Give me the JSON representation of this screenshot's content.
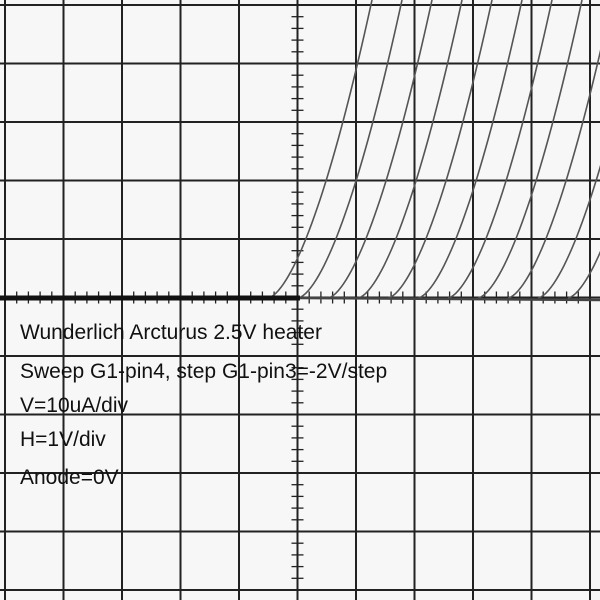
{
  "annotations": [
    "Wunderlich Arcturus 2.5V heater",
    "Sweep G1-pin4, step G1-pin3=-2V/step",
    "V=10uA/div",
    "H=1V/div",
    "Anode=0V"
  ]
}
